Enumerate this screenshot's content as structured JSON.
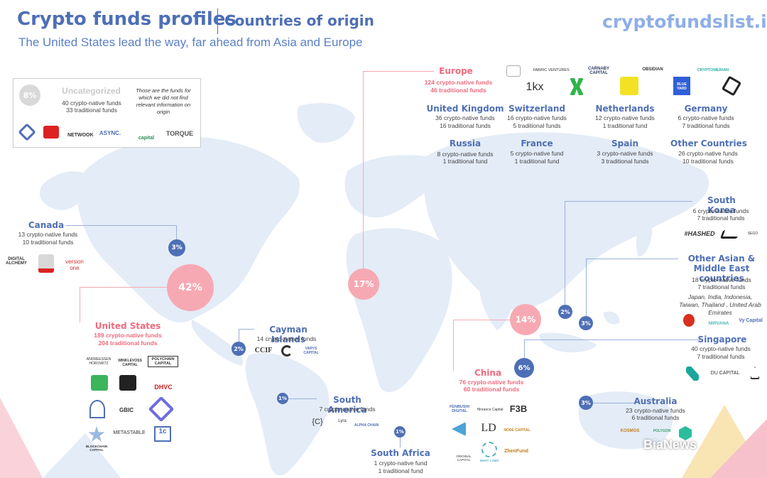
{
  "header": {
    "title": "Crypto funds profiles",
    "subtitle": "Countries of origin",
    "tagline": "The United States lead the way, far ahead from Asia and Europe",
    "brand": "cryptofundslist.io"
  },
  "uncategorized": {
    "percent": "8%",
    "title": "Uncategorized",
    "crypto": "40 crypto-native funds",
    "traditional": "33 traditional funds",
    "note": "Those are the funds for which we did not find relevant information on origin",
    "logos": [
      "NETWOOK",
      "ASYNC.",
      "capital",
      "TORQUE"
    ]
  },
  "canada": {
    "name": "Canada",
    "crypto": "13 crypto-native funds",
    "traditional": "10 traditional funds",
    "percent": "3%",
    "logos": [
      "DIGITAL ALCHEMY",
      "version one"
    ]
  },
  "us": {
    "name": "United States",
    "crypto": "189 crypto-native funds",
    "traditional": "204 traditional funds",
    "percent": "42%",
    "logos": [
      "ANDREESSEN HOROWITZ",
      "WINKLEVOSS CAPITAL",
      "POLYCHAIN CAPITAL",
      "DHVC",
      "GBIC",
      "METASTABLE",
      "1c",
      "BLOCKCHAIN CAPITAL"
    ]
  },
  "cayman": {
    "name": "Cayman Islands",
    "crypto": "14 crypto-native funds",
    "percent": "2%",
    "logos": [
      "CCIF",
      "VARYS CAPITAL"
    ]
  },
  "south_america": {
    "name": "South America",
    "crypto": "7 crypto-native funds",
    "percent": "1%",
    "logos": [
      "{C}",
      "Lyra",
      "ALPHA CHAIN"
    ]
  },
  "south_africa": {
    "name": "South Africa",
    "crypto": "1 crypto-native fund",
    "traditional": "1 traditional fund",
    "percent": "1%"
  },
  "europe": {
    "name": "Europe",
    "crypto": "124 crypto-native funds",
    "traditional": "46  traditional funds",
    "percent": "17%",
    "logos": [
      "FABRIC VENTURES",
      "CARNABY CAPITAL",
      "OBSIDIAN",
      "CRYPTOMERIAN",
      "1kx",
      "BLUE YARD"
    ],
    "countries": [
      {
        "name": "United Kingdom",
        "crypto": "36 crypto-native funds",
        "traditional": "16 traditional funds"
      },
      {
        "name": "Switzerland",
        "crypto": "16 crypto-native funds",
        "traditional": "5 traditional funds"
      },
      {
        "name": "Netherlands",
        "crypto": "12 crypto-native funds",
        "traditional": "1 traditional fund"
      },
      {
        "name": "Germany",
        "crypto": "6 crypto-native funds",
        "traditional": "7 traditional funds"
      },
      {
        "name": "Russia",
        "crypto": "8 crypto-native funds",
        "traditional": "1  traditional fund"
      },
      {
        "name": "France",
        "crypto": "5 crypto-native fund",
        "traditional": "1 traditional fund"
      },
      {
        "name": "Spain",
        "crypto": "3 crypto-native funds",
        "traditional": "3 traditional funds"
      },
      {
        "name": "Other Countries",
        "crypto": "26 crypto-native funds",
        "traditional": "10 traditional funds"
      }
    ]
  },
  "china": {
    "name": "China",
    "crypto": "76 crypto-native funds",
    "traditional": "60 traditional funds",
    "percent": "14%",
    "logos": [
      "FENBUSHI DIGITAL",
      "Hinrance Capital",
      "F3B",
      "LD",
      "NODE CAPITAL",
      "ZhenFund",
      "ORIGINAL CAPITAL",
      "DHVC LABS"
    ]
  },
  "south_korea": {
    "name": "South Korea",
    "crypto": "6 crypto-native funds",
    "traditional": "7 traditional funds",
    "percent": "2%",
    "logos": [
      "#HASHED",
      "SEGO"
    ]
  },
  "other_asian": {
    "name": "Other Asian & Middle East countries",
    "crypto": "18 crypto-native funds",
    "traditional": "7 traditional funds",
    "note": "Japan, India, Indonesia, Taiwan, Thailand , United Arab Emirates",
    "percent": "3%",
    "logos": [
      "NIRVANA",
      "Vy Capital"
    ]
  },
  "singapore": {
    "name": "Singapore",
    "crypto": "40 crypto-native funds",
    "traditional": "7 traditional funds",
    "percent": "6%",
    "logos": [
      "DU CAPITAL"
    ]
  },
  "australia": {
    "name": "Australia",
    "crypto": "23 crypto-native funds",
    "traditional": "6 traditional funds",
    "percent": "3%",
    "logos": [
      "KOSMOS",
      "POLYGON"
    ]
  },
  "watermark": "BiaNews",
  "colors": {
    "accent_blue": "#4e6fb5",
    "accent_pink": "#f7a9b3",
    "map": "#e3ecf7"
  },
  "chart_data": {
    "type": "pie",
    "title": "Crypto funds profiles",
    "subtitle": "Countries of origin",
    "categories": [
      "United States",
      "Europe",
      "China",
      "Uncategorized",
      "Singapore",
      "Canada",
      "Other Asian & Middle East countries",
      "Australia",
      "Cayman Islands",
      "South Korea",
      "South America",
      "South Africa"
    ],
    "values": [
      42,
      17,
      14,
      8,
      6,
      3,
      3,
      3,
      2,
      2,
      1,
      1
    ],
    "unit": "%"
  }
}
